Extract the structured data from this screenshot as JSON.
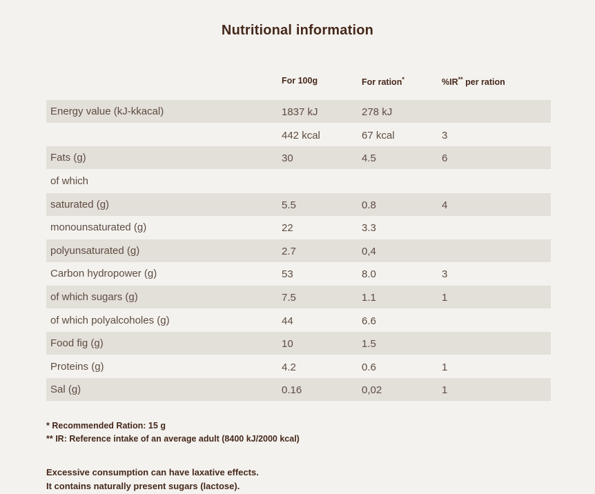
{
  "title": "Nutritional information",
  "table": {
    "headers": {
      "per100": "For 100g",
      "ration_text": "For ration",
      "ration_sup": "*",
      "ir_pre": "%IR",
      "ir_sup": "**",
      "ir_post": " per ration"
    },
    "rows": [
      {
        "label": "Energy value (kJ-kkacal)",
        "per100": "1837 kJ",
        "ration": "278 kJ",
        "ir": ""
      },
      {
        "label": "",
        "per100": "442 kcal",
        "ration": "67 kcal",
        "ir": "3"
      },
      {
        "label": "Fats (g)",
        "per100": "30",
        "ration": "4.5",
        "ir": "6"
      },
      {
        "label": "of which",
        "per100": "",
        "ration": "",
        "ir": ""
      },
      {
        "label": "saturated (g)",
        "per100": "5.5",
        "ration": "0.8",
        "ir": "4"
      },
      {
        "label": "monounsaturated (g)",
        "per100": "22",
        "ration": "3.3",
        "ir": ""
      },
      {
        "label": "polyunsaturated (g)",
        "per100": "2.7",
        "ration": "0,4",
        "ir": ""
      },
      {
        "label": "Carbon hydropower (g)",
        "per100": "53",
        "ration": "8.0",
        "ir": "3"
      },
      {
        "label": "of which sugars (g)",
        "per100": "7.5",
        "ration": "1.1",
        "ir": "1"
      },
      {
        "label": "of which polyalcoholes (g)",
        "per100": "44",
        "ration": "6.6",
        "ir": ""
      },
      {
        "label": "Food fig (g)",
        "per100": "10",
        "ration": "1.5",
        "ir": ""
      },
      {
        "label": "Proteins (g)",
        "per100": "4.2",
        "ration": "0.6",
        "ir": "1"
      },
      {
        "label": "Sal (g)",
        "per100": "0.16",
        "ration": "0,02",
        "ir": "1"
      }
    ]
  },
  "footnotes": {
    "line1": "* Recommended Ration: 15 g",
    "line2": "** IR: Reference intake of an average adult (8400 kJ/2000 kcal)"
  },
  "warnings": {
    "line1": "Excessive consumption can have laxative effects.",
    "line2": "It contains naturally present sugars (lactose)."
  },
  "colors": {
    "background": "#f4f2ee",
    "row_shaded": "#e3dfd9",
    "title_text": "#45281b",
    "body_text": "#5d4c41"
  }
}
